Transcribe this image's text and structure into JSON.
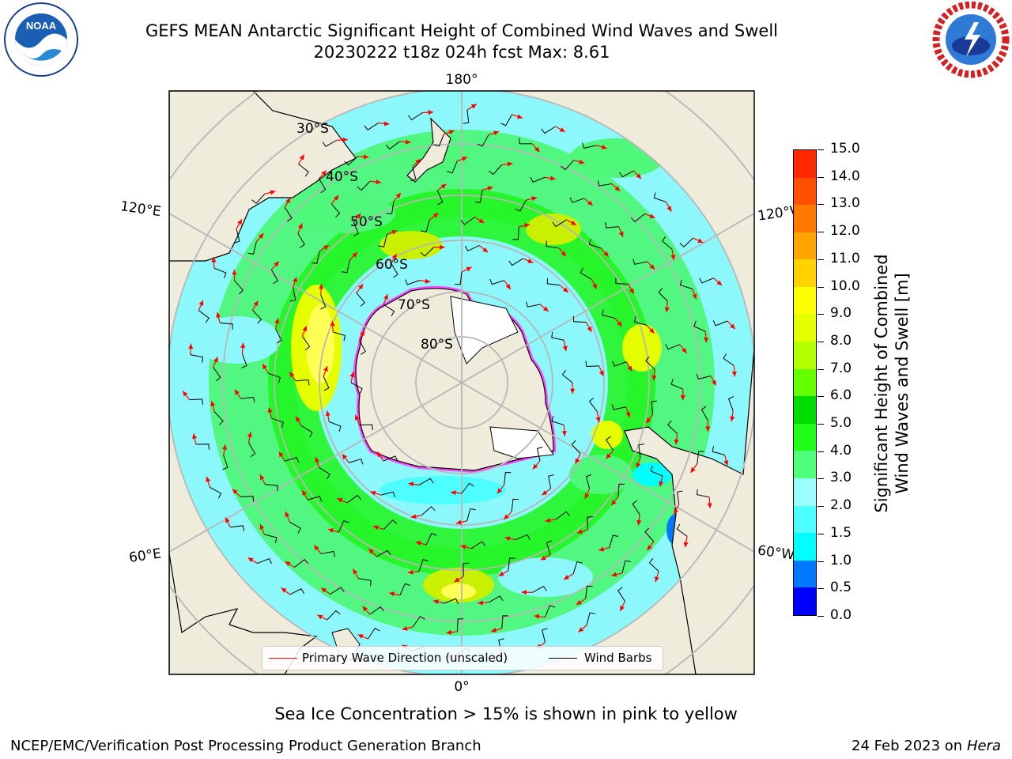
{
  "title": {
    "line1": "GEFS MEAN Antarctic Significant Height of Combined Wind Waves and Swell",
    "line2": "20230222 t18z 024h fcst   Max: 8.61"
  },
  "logos": {
    "left": "noaa-logo",
    "right": "nws-logo"
  },
  "map": {
    "projection": "south-polar-stereographic",
    "longitude_labels": {
      "top": "180°",
      "bottom": "0°",
      "upper_left": "120°E",
      "upper_right": "120°W",
      "lower_left": "60°E",
      "lower_right": "60°W"
    },
    "latitude_labels": [
      "30°S",
      "40°S",
      "50°S",
      "60°S",
      "70°S",
      "80°S"
    ],
    "colors": {
      "land": "#efecdc",
      "ocean_low": "#8cf8fc",
      "ocean_mid": "#4ff77a",
      "ocean_high": "#1ff51a",
      "peak": "#c8f000",
      "ice_edge": "#ff44ff",
      "arrow": "#ff0000",
      "barb": "#000000",
      "grid": "#b7b7b7"
    }
  },
  "legend": {
    "primary_wave": "Primary Wave Direction (unscaled)",
    "wind_barbs": "Wind Barbs"
  },
  "colorbar": {
    "title_line1": "Significant Height of Combined",
    "title_line2": "Wind Waves and Swell [m]",
    "tick_labels": [
      "0.0",
      "0.5",
      "1.0",
      "1.5",
      "2.0",
      "3.0",
      "4.0",
      "5.0",
      "6.0",
      "7.0",
      "8.0",
      "9.0",
      "10.0",
      "11.0",
      "12.0",
      "13.0",
      "14.0",
      "15.0"
    ],
    "colors": [
      "#0000ff",
      "#0078ff",
      "#00ffff",
      "#4dffff",
      "#9bffff",
      "#4dff7a",
      "#1fff1a",
      "#00dd00",
      "#66ff00",
      "#b4ff00",
      "#e6ff00",
      "#ffff00",
      "#ffd200",
      "#ffa500",
      "#ff7800",
      "#ff5000",
      "#ff2800",
      "#ff0000"
    ]
  },
  "notes": {
    "ice": "Sea Ice Concentration > 15% is shown in pink to yellow",
    "credit": "NCEP/EMC/Verification Post Processing Product Generation Branch",
    "date": "24 Feb 2023 on",
    "machine": "Hera"
  }
}
